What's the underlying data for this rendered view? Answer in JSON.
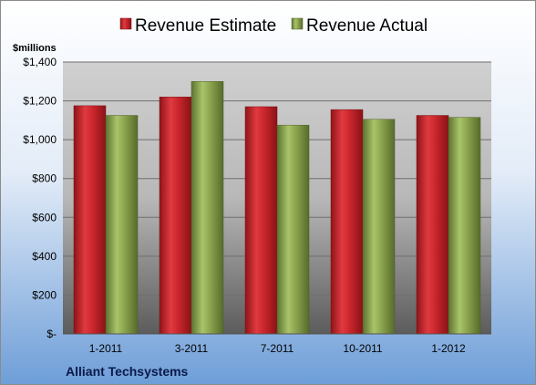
{
  "chart_data": {
    "type": "bar",
    "categories": [
      "1-2011",
      "3-2011",
      "7-2011",
      "10-2011",
      "1-2012"
    ],
    "series": [
      {
        "name": "Revenue Estimate",
        "values": [
          1175,
          1220,
          1170,
          1155,
          1125
        ],
        "color": "#c0272d"
      },
      {
        "name": "Revenue Actual",
        "values": [
          1125,
          1300,
          1075,
          1105,
          1115
        ],
        "color": "#8aa24c"
      }
    ],
    "ylabel": "$millions",
    "ylim": [
      0,
      1400
    ],
    "yticks": [
      0,
      200,
      400,
      600,
      800,
      1000,
      1200,
      1400
    ],
    "ytick_labels": [
      "$-",
      "$200",
      "$400",
      "$600",
      "$800",
      "$1,000",
      "$1,200",
      "$1,400"
    ],
    "grid": true,
    "legend_position": "top",
    "company": "Alliant Techsystems"
  }
}
